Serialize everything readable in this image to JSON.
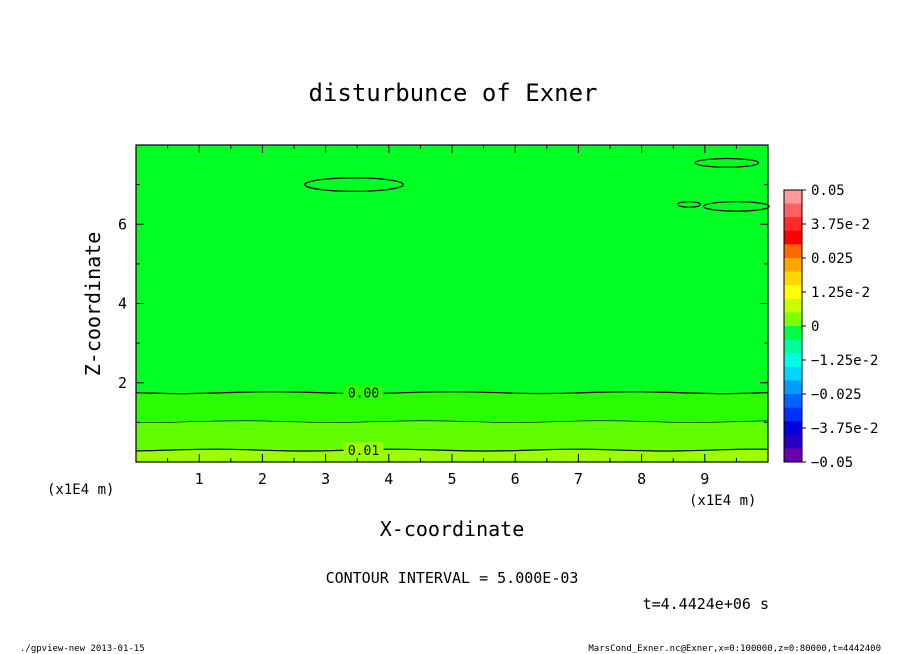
{
  "chart_data": {
    "type": "heatmap",
    "title": "disturbunce of Exner",
    "xlabel": "X-coordinate",
    "ylabel": "Z-coordinate",
    "x_unit_label": "(x1E4 m)",
    "x_unit_label_left": "(x1E4 m)",
    "xlim": [
      0,
      10
    ],
    "ylim": [
      0,
      8
    ],
    "xticks": [
      "1",
      "2",
      "3",
      "4",
      "5",
      "6",
      "7",
      "8",
      "9"
    ],
    "xtick_values": [
      1,
      2,
      3,
      4,
      5,
      6,
      7,
      8,
      9
    ],
    "yticks": [
      "2",
      "4",
      "6"
    ],
    "ytick_values": [
      2,
      4,
      6
    ],
    "colorbar": {
      "labels": [
        "0.05",
        "3.75e-2",
        "0.025",
        "1.25e-2",
        "0",
        "−1.25e-2",
        "−0.025",
        "−3.75e-2",
        "−0.05"
      ],
      "colors": [
        "#ff9a9a",
        "#ff6060",
        "#ff2a2a",
        "#ff0000",
        "#ff6a00",
        "#ffa500",
        "#ffd700",
        "#ffff00",
        "#c8ff00",
        "#80ff00",
        "#00ff40",
        "#00ff9a",
        "#00ffe0",
        "#00d8ff",
        "#009cff",
        "#0064ff",
        "#0030ff",
        "#0000e0",
        "#2a00c0",
        "#6a00b0"
      ],
      "range": [
        -0.05,
        0.05
      ]
    },
    "bands": [
      {
        "zmin": 0.0,
        "zmax": 0.3,
        "color": "#9cff00"
      },
      {
        "zmin": 0.3,
        "zmax": 1.0,
        "color": "#60ff00"
      },
      {
        "zmin": 1.0,
        "zmax": 1.75,
        "color": "#2aff00"
      },
      {
        "zmin": 1.75,
        "zmax": 8.0,
        "color": "#00ff22"
      }
    ],
    "contours": [
      {
        "label": "0.00",
        "z": 1.75,
        "label_x": 3.6
      },
      {
        "label": "",
        "z": 1.02,
        "label_x": null
      },
      {
        "label": "0.01",
        "z": 0.3,
        "label_x": 3.6
      }
    ],
    "ellipses": [
      {
        "cx": 3.45,
        "cz": 7.0,
        "rx": 0.78,
        "rz": 0.17
      },
      {
        "cx": 9.35,
        "cz": 7.55,
        "rx": 0.5,
        "rz": 0.11
      },
      {
        "cx": 9.5,
        "cz": 6.45,
        "rx": 0.52,
        "rz": 0.12
      },
      {
        "cx": 8.75,
        "cz": 6.5,
        "rx": 0.18,
        "rz": 0.07
      }
    ],
    "contour_interval_text": "CONTOUR INTERVAL = 5.000E-03",
    "time_text": "t=4.4424e+06 s"
  },
  "footer": {
    "left": "./gpview-new  2013-01-15",
    "right": "MarsCond_Exner.nc@Exner,x=0:100000,z=0:80000,t=4442400"
  }
}
